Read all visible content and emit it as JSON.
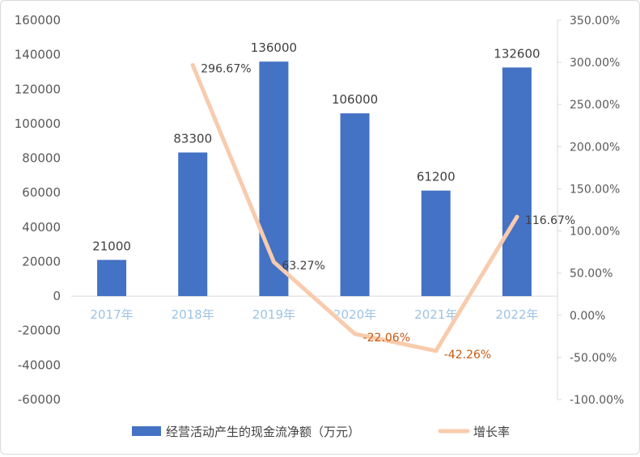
{
  "chart_data": {
    "type": "bar",
    "categories": [
      "2017年",
      "2018年",
      "2019年",
      "2020年",
      "2021年",
      "2022年"
    ],
    "series": [
      {
        "name": "经营活动产生的现金流净额（万元）",
        "type": "bar",
        "axis": "left",
        "values": [
          21000,
          83300,
          136000,
          106000,
          61200,
          132600
        ],
        "labels": [
          "21000",
          "83300",
          "136000",
          "106000",
          "61200",
          "132600"
        ],
        "color": "#4472c4"
      },
      {
        "name": "增长率",
        "type": "line",
        "axis": "right",
        "values": [
          null,
          296.67,
          63.27,
          -22.06,
          -42.26,
          116.67
        ],
        "labels": [
          "",
          "296.67%",
          "63.27%",
          "-22.06%",
          "-42.26%",
          "116.67%"
        ],
        "label_colors": [
          "#404040",
          "#404040",
          "#404040",
          "#c55a11",
          "#c55a11",
          "#404040"
        ],
        "color": "#f8cbad"
      }
    ],
    "y_left": {
      "range": [
        -60000,
        160000
      ],
      "ticks": [
        "160000",
        "140000",
        "120000",
        "100000",
        "80000",
        "60000",
        "40000",
        "20000",
        "0",
        "-20000",
        "-40000",
        "-60000"
      ]
    },
    "y_right": {
      "range": [
        -100,
        350
      ],
      "ticks": [
        "350.00%",
        "300.00%",
        "250.00%",
        "200.00%",
        "150.00%",
        "100.00%",
        "50.00%",
        "0.00%",
        "-50.00%",
        "-100.00%"
      ]
    },
    "grid": false,
    "legend_position": "bottom"
  }
}
